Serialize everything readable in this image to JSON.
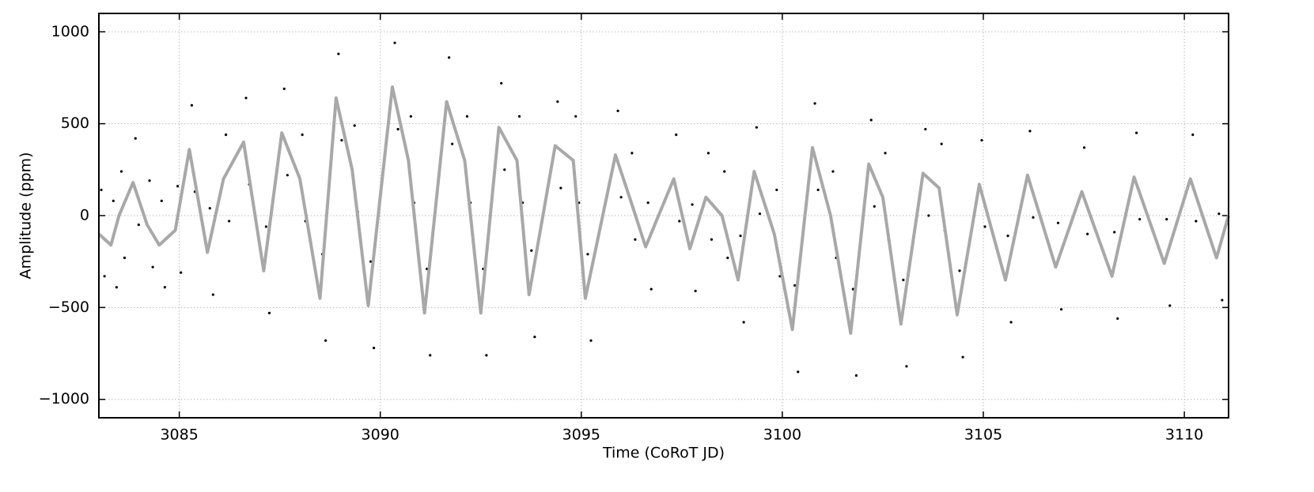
{
  "chart_data": {
    "type": "scatter",
    "xlabel": "Time (CoRoT JD)",
    "ylabel": "Amplitude (ppm)",
    "xlim": [
      3083,
      3111.1
    ],
    "ylim": [
      -1100,
      1100
    ],
    "xticks": [
      3085,
      3090,
      3095,
      3100,
      3105,
      3110
    ],
    "yticks": [
      {
        "value": -1000,
        "label": "−1000"
      },
      {
        "value": -500,
        "label": "−500"
      },
      0,
      500,
      1000
    ],
    "grid": true,
    "series": [
      {
        "type": "scatter",
        "color": "#000000",
        "x": [
          3083.06,
          3083.14,
          3083.36,
          3083.44,
          3083.56,
          3083.64,
          3083.91,
          3083.99,
          3084.26,
          3084.34,
          3084.56,
          3084.64,
          3084.96,
          3085.04,
          3085.31,
          3085.39,
          3085.76,
          3085.84,
          3086.16,
          3086.24,
          3086.66,
          3086.74,
          3087.16,
          3087.24,
          3087.61,
          3087.69,
          3088.06,
          3088.14,
          3088.56,
          3088.64,
          3088.96,
          3089.04,
          3089.36,
          3089.44,
          3089.76,
          3089.84,
          3090.36,
          3090.44,
          3090.76,
          3090.84,
          3091.16,
          3091.24,
          3091.71,
          3091.79,
          3092.16,
          3092.24,
          3092.56,
          3092.64,
          3093.01,
          3093.09,
          3093.46,
          3093.54,
          3093.76,
          3093.84,
          3094.41,
          3094.49,
          3094.86,
          3094.94,
          3095.16,
          3095.24,
          3095.91,
          3095.99,
          3096.26,
          3096.34,
          3096.66,
          3096.74,
          3097.36,
          3097.44,
          3097.76,
          3097.84,
          3098.16,
          3098.24,
          3098.56,
          3098.64,
          3098.96,
          3099.04,
          3099.36,
          3099.44,
          3099.86,
          3099.94,
          3100.31,
          3100.39,
          3100.81,
          3100.89,
          3101.26,
          3101.34,
          3101.76,
          3101.84,
          3102.21,
          3102.29,
          3102.56,
          3102.64,
          3103.01,
          3103.09,
          3103.56,
          3103.64,
          3103.96,
          3104.04,
          3104.41,
          3104.49,
          3104.96,
          3105.04,
          3105.61,
          3105.69,
          3106.16,
          3106.24,
          3106.86,
          3106.94,
          3107.51,
          3107.59,
          3108.26,
          3108.34,
          3108.81,
          3108.89,
          3109.56,
          3109.64,
          3110.21,
          3110.29,
          3110.86,
          3110.94
        ],
        "values": [
          140,
          -330,
          80,
          -390,
          240,
          -230,
          420,
          -50,
          190,
          -280,
          80,
          -390,
          160,
          -310,
          600,
          130,
          40,
          -430,
          440,
          -30,
          640,
          170,
          -60,
          -530,
          690,
          220,
          440,
          -30,
          -210,
          -680,
          880,
          410,
          490,
          20,
          -250,
          -720,
          940,
          470,
          540,
          70,
          -290,
          -760,
          860,
          390,
          540,
          70,
          -290,
          -760,
          720,
          250,
          540,
          70,
          -190,
          -660,
          620,
          150,
          540,
          70,
          -210,
          -680,
          570,
          100,
          340,
          -130,
          70,
          -400,
          440,
          -30,
          60,
          -410,
          340,
          -130,
          240,
          -230,
          -110,
          -580,
          480,
          10,
          140,
          -330,
          -380,
          -850,
          610,
          140,
          240,
          -230,
          -400,
          -870,
          520,
          50,
          340,
          -130,
          -350,
          -820,
          470,
          0,
          390,
          -80,
          -300,
          -770,
          410,
          -60,
          -110,
          -580,
          460,
          -10,
          -40,
          -510,
          370,
          -100,
          -90,
          -560,
          450,
          -20,
          -20,
          -490,
          440,
          -30,
          10,
          -460
        ]
      },
      {
        "type": "line",
        "color": "#a8a8a8",
        "x": [
          3083,
          3083.3,
          3083.5,
          3083.85,
          3084.2,
          3084.5,
          3084.9,
          3085.25,
          3085.7,
          3086.1,
          3086.6,
          3087.1,
          3087.55,
          3088.0,
          3088.5,
          3088.9,
          3089.3,
          3089.7,
          3090.3,
          3090.7,
          3091.1,
          3091.65,
          3092.1,
          3092.5,
          3092.95,
          3093.4,
          3093.7,
          3094.35,
          3094.8,
          3095.1,
          3095.85,
          3096.2,
          3096.6,
          3097.3,
          3097.7,
          3098.1,
          3098.5,
          3098.9,
          3099.3,
          3099.8,
          3100.25,
          3100.75,
          3101.2,
          3101.7,
          3102.15,
          3102.5,
          3102.95,
          3103.5,
          3103.9,
          3104.35,
          3104.9,
          3105.55,
          3106.1,
          3106.8,
          3107.45,
          3108.2,
          3108.75,
          3109.5,
          3110.15,
          3110.8,
          3111.1
        ],
        "values": [
          -100,
          -160,
          0,
          180,
          -50,
          -160,
          -80,
          360,
          -200,
          200,
          400,
          -300,
          450,
          200,
          -450,
          640,
          250,
          -490,
          700,
          300,
          -530,
          620,
          300,
          -530,
          480,
          300,
          -430,
          380,
          300,
          -450,
          330,
          100,
          -170,
          200,
          -180,
          100,
          0,
          -350,
          240,
          -100,
          -620,
          370,
          0,
          -640,
          280,
          100,
          -590,
          230,
          150,
          -540,
          170,
          -350,
          220,
          -280,
          130,
          -330,
          210,
          -260,
          200,
          -230,
          0
        ]
      }
    ]
  }
}
